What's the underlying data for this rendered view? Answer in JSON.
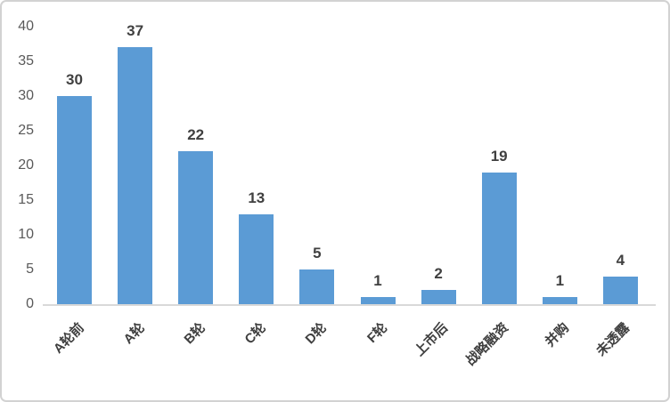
{
  "chart_data": {
    "type": "bar",
    "title": "",
    "categories": [
      "A轮前",
      "A轮",
      "B轮",
      "C轮",
      "D轮",
      "F轮",
      "上市后",
      "战略融资",
      "并购",
      "未透露"
    ],
    "values": [
      30,
      37,
      22,
      13,
      5,
      1,
      2,
      19,
      1,
      4
    ],
    "xlabel": "",
    "ylabel": "",
    "ylim": [
      0,
      40
    ],
    "yticks": [
      0,
      5,
      10,
      15,
      20,
      25,
      30,
      35,
      40
    ],
    "grid": false,
    "legend": "none",
    "bar_color": "#5B9BD5",
    "axis_line_color": "#D9D9D9",
    "ytick_label_color": "#595959",
    "xtick_label_color": "#3F3F3F",
    "data_label_color": "#404040",
    "border_color": "#D2D2D2",
    "background_color": "#FFFFFF"
  }
}
